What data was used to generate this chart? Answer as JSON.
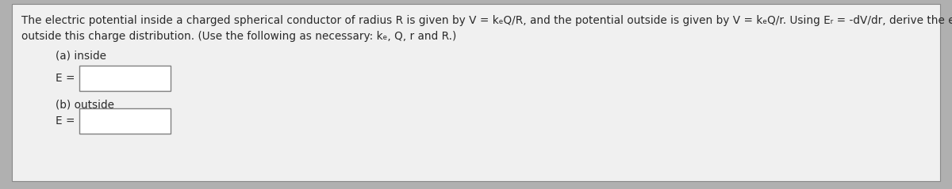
{
  "outer_bg": "#b0b0b0",
  "inner_bg": "#f0f0f0",
  "white": "#ffffff",
  "text_color": "#2a2a2a",
  "border_color": "#888888",
  "box_border": "#808080",
  "line1": "The electric potential inside a charged spherical conductor of radius R is given by V = kₑQ/R, and the potential outside is given by V = kₑQ/r. Using Eᵣ = -dV/dr, derive the electric field inside and",
  "line2": "outside this charge distribution. (Use the following as necessary: kₑ, Q, r and R.)",
  "part_a_label": "(a) inside",
  "part_b_label": "(b) outside",
  "e_label": "E = ",
  "font_size": 9.8,
  "figwidth": 12.0,
  "figheight": 2.39
}
